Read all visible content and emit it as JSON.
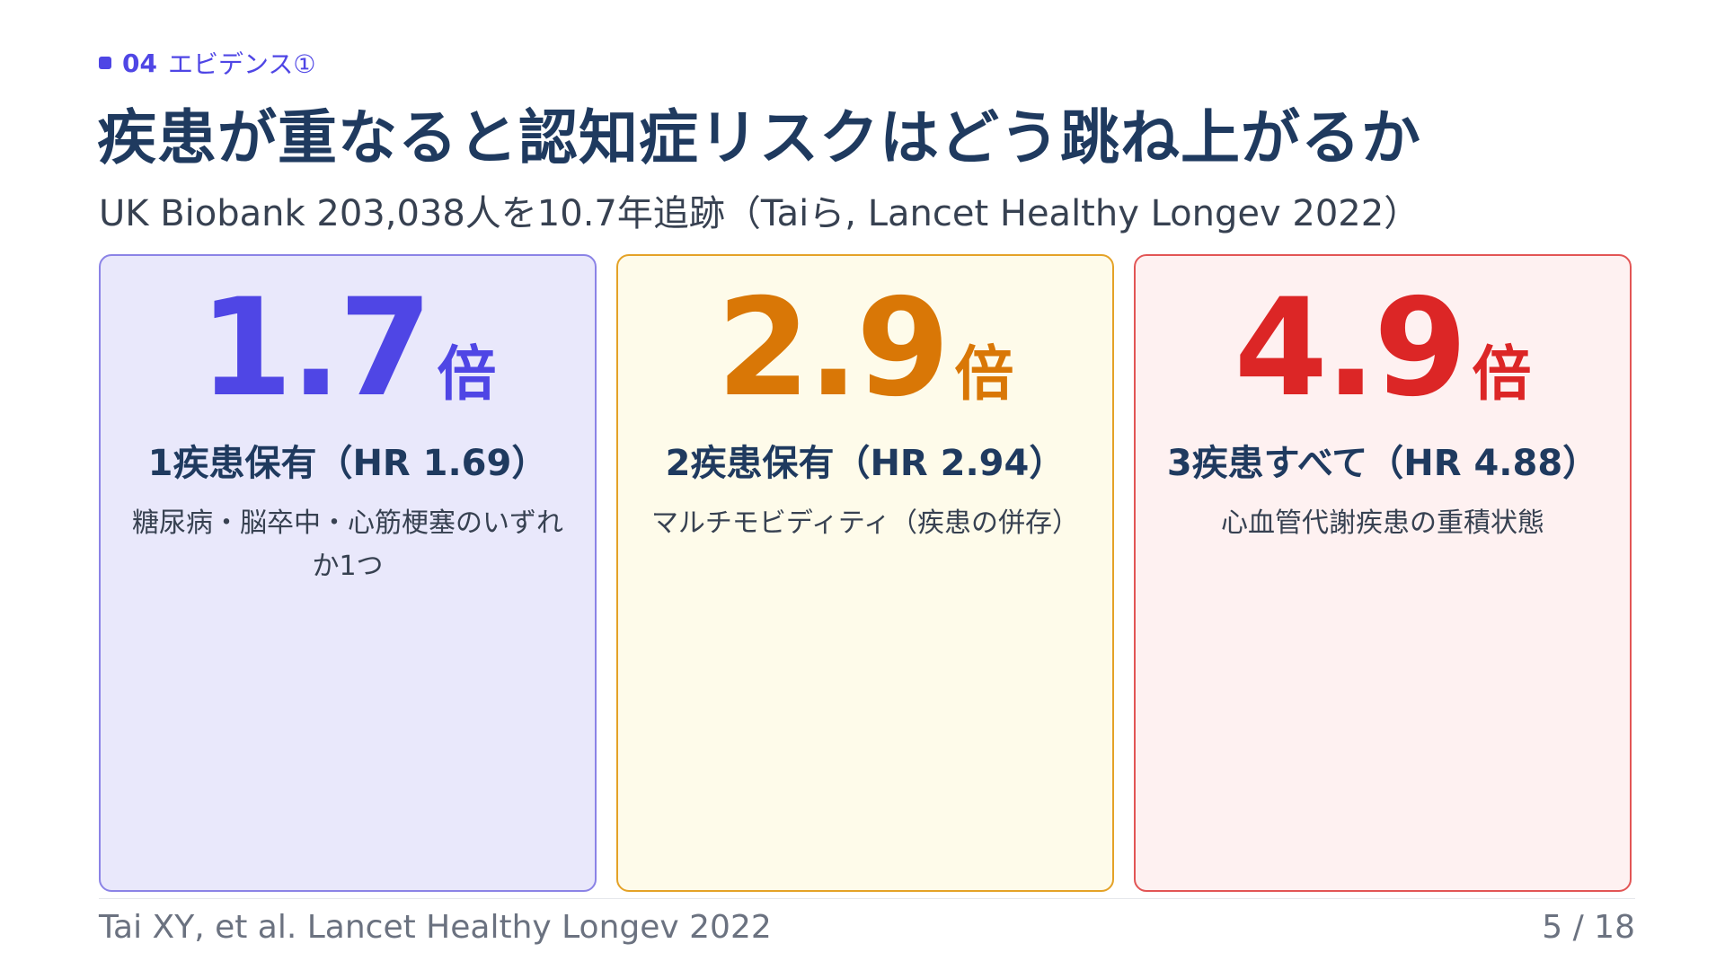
{
  "section": {
    "number": "04",
    "label": "エビデンス①"
  },
  "title": "疾患が重なると認知症リスクはどう跳ね上がるか",
  "subtitle": "UK Biobank 203,038人を10.7年追跡（Taiら, Lancet Healthy Longev 2022）",
  "cards": [
    {
      "value": "1.7",
      "unit": "倍",
      "label": "1疾患保有（HR 1.69）",
      "description": "糖尿病・脳卒中・心筋梗塞のいずれか1つ",
      "color": "#4f46e5"
    },
    {
      "value": "2.9",
      "unit": "倍",
      "label": "2疾患保有（HR 2.94）",
      "description": "マルチモビディティ（疾患の併存）",
      "color": "#d97706"
    },
    {
      "value": "4.9",
      "unit": "倍",
      "label": "3疾患すべて（HR 4.88）",
      "description": "心血管代謝疾患の重積状態",
      "color": "#dc2626"
    }
  ],
  "footer": {
    "citation": "Tai XY, et al. Lancet Healthy Longev 2022",
    "page": "5 / 18"
  }
}
